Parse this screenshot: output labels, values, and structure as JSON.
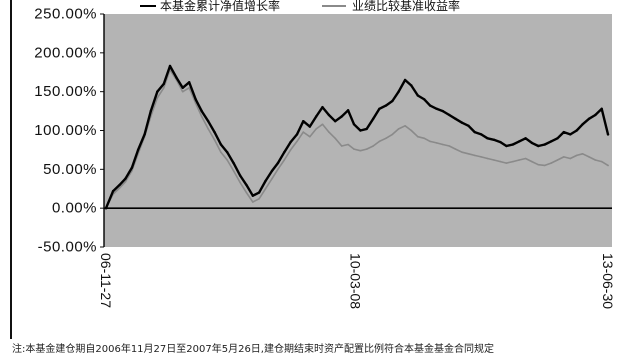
{
  "chart_data": {
    "type": "line",
    "legend": "top",
    "grid": false,
    "plot_background": "#b4b4b4",
    "ylim": [
      -50,
      250
    ],
    "yticks": [
      250,
      200,
      150,
      100,
      50,
      0,
      -50
    ],
    "ytick_labels": [
      "250.00%",
      "200.00%",
      "150.00%",
      "100.00%",
      "50.00%",
      "0.00%",
      "-50.00%"
    ],
    "xticks": [
      "2006-11-27",
      "2010-03-08",
      "2013-06-30"
    ],
    "xtick_labels": [
      "06-11-27",
      "10-03-08",
      "13-06-30"
    ],
    "x": [
      "2006-11-27",
      "2006-12-31",
      "2007-01-31",
      "2007-02-28",
      "2007-03-31",
      "2007-04-30",
      "2007-05-31",
      "2007-06-30",
      "2007-07-31",
      "2007-08-31",
      "2007-09-30",
      "2007-10-31",
      "2007-11-30",
      "2007-12-31",
      "2008-01-31",
      "2008-02-29",
      "2008-03-31",
      "2008-04-30",
      "2008-05-31",
      "2008-06-30",
      "2008-07-31",
      "2008-08-31",
      "2008-09-30",
      "2008-10-31",
      "2008-11-30",
      "2008-12-31",
      "2009-01-31",
      "2009-02-28",
      "2009-03-31",
      "2009-04-30",
      "2009-05-31",
      "2009-06-30",
      "2009-07-31",
      "2009-08-31",
      "2009-09-30",
      "2009-10-31",
      "2009-11-30",
      "2009-12-31",
      "2010-01-31",
      "2010-02-28",
      "2010-03-31",
      "2010-04-30",
      "2010-05-31",
      "2010-06-30",
      "2010-07-31",
      "2010-08-31",
      "2010-09-30",
      "2010-10-31",
      "2010-11-30",
      "2010-12-31",
      "2011-01-31",
      "2011-02-28",
      "2011-03-31",
      "2011-04-30",
      "2011-05-31",
      "2011-06-30",
      "2011-07-31",
      "2011-08-31",
      "2011-09-30",
      "2011-10-31",
      "2011-11-30",
      "2011-12-31",
      "2012-01-31",
      "2012-02-29",
      "2012-03-31",
      "2012-04-30",
      "2012-05-31",
      "2012-06-30",
      "2012-07-31",
      "2012-08-31",
      "2012-09-30",
      "2012-10-31",
      "2012-11-30",
      "2012-12-31",
      "2013-01-31",
      "2013-02-28",
      "2013-03-31",
      "2013-04-30",
      "2013-05-31",
      "2013-06-30"
    ],
    "series": [
      {
        "name": "本基金累计净值增长率",
        "color": "#000000",
        "values": [
          0,
          22,
          30,
          38,
          52,
          75,
          95,
          125,
          150,
          160,
          183,
          168,
          155,
          162,
          140,
          125,
          112,
          98,
          82,
          72,
          58,
          42,
          30,
          16,
          20,
          35,
          48,
          58,
          72,
          85,
          95,
          112,
          105,
          118,
          130,
          120,
          112,
          118,
          126,
          108,
          100,
          102,
          115,
          128,
          132,
          138,
          150,
          165,
          158,
          145,
          140,
          132,
          128,
          125,
          120,
          115,
          110,
          106,
          98,
          95,
          90,
          88,
          85,
          80,
          82,
          86,
          90,
          84,
          80,
          82,
          86,
          90,
          98,
          95,
          100,
          108,
          115,
          120,
          128,
          95
        ]
      },
      {
        "name": "业绩比较基准收益率",
        "color": "#8a8a8a",
        "values": [
          0,
          18,
          26,
          34,
          48,
          70,
          92,
          118,
          142,
          155,
          178,
          165,
          150,
          155,
          135,
          118,
          102,
          88,
          72,
          62,
          48,
          33,
          20,
          8,
          12,
          25,
          38,
          50,
          62,
          75,
          86,
          98,
          92,
          102,
          108,
          98,
          90,
          80,
          82,
          76,
          74,
          76,
          80,
          86,
          90,
          95,
          102,
          106,
          100,
          92,
          90,
          86,
          84,
          82,
          80,
          76,
          72,
          70,
          68,
          66,
          64,
          62,
          60,
          58,
          60,
          62,
          64,
          60,
          56,
          55,
          58,
          62,
          66,
          64,
          68,
          70,
          66,
          62,
          60,
          55
        ]
      }
    ]
  },
  "footnote": "注:本基金建仓期自2006年11月27日至2007年5月26日,建仓期结束时资产配置比例符合本基金基金合同规定"
}
